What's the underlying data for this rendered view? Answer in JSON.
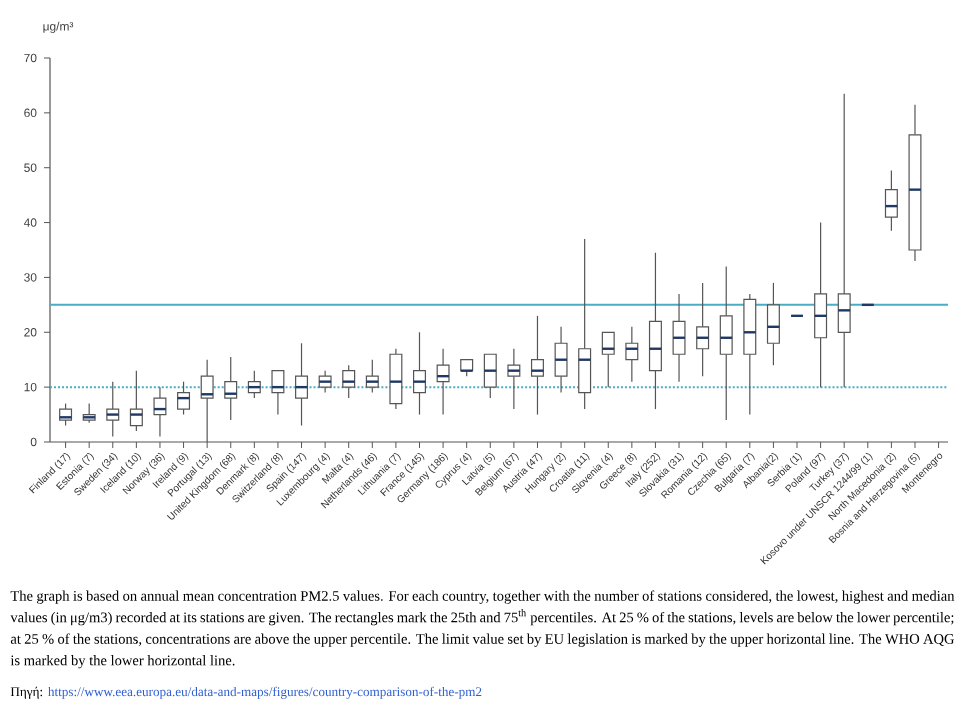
{
  "chart_data": {
    "type": "box",
    "ylabel": "μg/m³",
    "categories": [
      "Finland (17)",
      "Estonia (7)",
      "Sweden (34)",
      "Iceland (10)",
      "Norway (36)",
      "Ireland (9)",
      "Portugal (13)",
      "United Kingdom (68)",
      "Denmark (8)",
      "Switzerland (8)",
      "Spain (147)",
      "Luxembourg (4)",
      "Malta (4)",
      "Netherlands (46)",
      "Lithuania (7)",
      "France (145)",
      "Germany (186)",
      "Cyprus (4)",
      "Latvia (5)",
      "Belgium (67)",
      "Austria (47)",
      "Hungary (2)",
      "Croatia (11)",
      "Slovenia (4)",
      "Greece (8)",
      "Italy (252)",
      "Slovakia (31)",
      "Romania (12)",
      "Czechia (65)",
      "Bulgaria (7)",
      "Albania(2)",
      "Serbia (1)",
      "Poland (97)",
      "Turkey (37)",
      "Kosovo under UNSCR 1244/99 (1)",
      "North Macedonia (2)",
      "Bosnia and Herzegovina (5)",
      "Montenegro"
    ],
    "boxes": [
      {
        "low": 3,
        "q1": 4,
        "median": 4.5,
        "q3": 6,
        "high": 7
      },
      {
        "low": 3.5,
        "q1": 4,
        "median": 4.5,
        "q3": 5,
        "high": 7
      },
      {
        "low": 1,
        "q1": 4,
        "median": 5,
        "q3": 6,
        "high": 11
      },
      {
        "low": 2,
        "q1": 3,
        "median": 5,
        "q3": 6,
        "high": 13
      },
      {
        "low": 1,
        "q1": 5,
        "median": 6,
        "q3": 8,
        "high": 10
      },
      {
        "low": 5,
        "q1": 6,
        "median": 8,
        "q3": 9,
        "high": 11
      },
      {
        "low": 0,
        "q1": 8,
        "median": 8.7,
        "q3": 12,
        "high": 15
      },
      {
        "low": 4,
        "q1": 8,
        "median": 8.8,
        "q3": 11,
        "high": 15.5
      },
      {
        "low": 8,
        "q1": 9,
        "median": 10,
        "q3": 11,
        "high": 13
      },
      {
        "low": 5,
        "q1": 9,
        "median": 10,
        "q3": 13,
        "high": 13
      },
      {
        "low": 3,
        "q1": 8,
        "median": 10,
        "q3": 12,
        "high": 18
      },
      {
        "low": 9,
        "q1": 10,
        "median": 11,
        "q3": 12,
        "high": 13
      },
      {
        "low": 8,
        "q1": 10,
        "median": 11,
        "q3": 13,
        "high": 14
      },
      {
        "low": 9,
        "q1": 10,
        "median": 11,
        "q3": 12,
        "high": 15
      },
      {
        "low": 6,
        "q1": 7,
        "median": 11,
        "q3": 16,
        "high": 17
      },
      {
        "low": 5,
        "q1": 9,
        "median": 11,
        "q3": 13,
        "high": 20
      },
      {
        "low": 5,
        "q1": 11,
        "median": 12,
        "q3": 14,
        "high": 17
      },
      {
        "low": 12,
        "q1": 13,
        "median": 13,
        "q3": 15,
        "high": 15
      },
      {
        "low": 8,
        "q1": 10,
        "median": 13,
        "q3": 16,
        "high": 16
      },
      {
        "low": 6,
        "q1": 12,
        "median": 13,
        "q3": 14,
        "high": 17
      },
      {
        "low": 5,
        "q1": 12,
        "median": 13,
        "q3": 15,
        "high": 23
      },
      {
        "low": 9,
        "q1": 12,
        "median": 15,
        "q3": 18,
        "high": 21
      },
      {
        "low": 6,
        "q1": 9,
        "median": 15,
        "q3": 17,
        "high": 37
      },
      {
        "low": 10,
        "q1": 16,
        "median": 17,
        "q3": 20,
        "high": 20
      },
      {
        "low": 11,
        "q1": 15,
        "median": 17,
        "q3": 18,
        "high": 21
      },
      {
        "low": 6,
        "q1": 13,
        "median": 17,
        "q3": 22,
        "high": 34.5
      },
      {
        "low": 11,
        "q1": 16,
        "median": 19,
        "q3": 22,
        "high": 27
      },
      {
        "low": 12,
        "q1": 17,
        "median": 19,
        "q3": 21,
        "high": 29
      },
      {
        "low": 4,
        "q1": 16,
        "median": 19,
        "q3": 23,
        "high": 32
      },
      {
        "low": 5,
        "q1": 16,
        "median": 20,
        "q3": 26,
        "high": 27
      },
      {
        "low": 14,
        "q1": 18,
        "median": 21,
        "q3": 25,
        "high": 29
      },
      {
        "low": 23,
        "q1": 23,
        "median": 23,
        "q3": 23,
        "high": 23
      },
      {
        "low": 10,
        "q1": 19,
        "median": 23,
        "q3": 27,
        "high": 40
      },
      {
        "low": 10,
        "q1": 20,
        "median": 24,
        "q3": 27,
        "high": 63.5
      },
      {
        "low": 25,
        "q1": 25,
        "median": 25,
        "q3": 25,
        "high": 25
      },
      {
        "low": 38.5,
        "q1": 41,
        "median": 43,
        "q3": 46,
        "high": 49.5
      },
      {
        "low": 33,
        "q1": 35,
        "median": 46,
        "q3": 56,
        "high": 61.5
      },
      null
    ],
    "color": "#555555",
    "ylim": [
      0,
      70
    ],
    "yticks": [
      0,
      10,
      20,
      30,
      40,
      50,
      60,
      70
    ],
    "ref_lines": [
      {
        "axis": "y",
        "value": 25,
        "color": "#4bacc6",
        "line_style": "solid"
      },
      {
        "axis": "y",
        "value": 10,
        "color": "#4bacc6",
        "line_style": "dotted"
      }
    ],
    "annotations": [
      "The graph is based on annual mean concentration PM2.5 values. For each country, together with the number of stations considered, the lowest, highest and median values (in μg/m3) recorded at its stations are given. The rectangles mark the 25th and 75$^{th}$ percentiles. At 25 % of the stations, levels are below the lower percentile; at 25 % of the stations, concentrations are above the upper percentile. The limit value set by EU legislation is marked by the upper horizontal line. The WHO AQG is marked by the lower horizontal line.",
      "Πηγή:",
      "https://www.eea.europa.eu/data-and-maps/figures/country-comparison-of-the-pm2"
    ]
  }
}
